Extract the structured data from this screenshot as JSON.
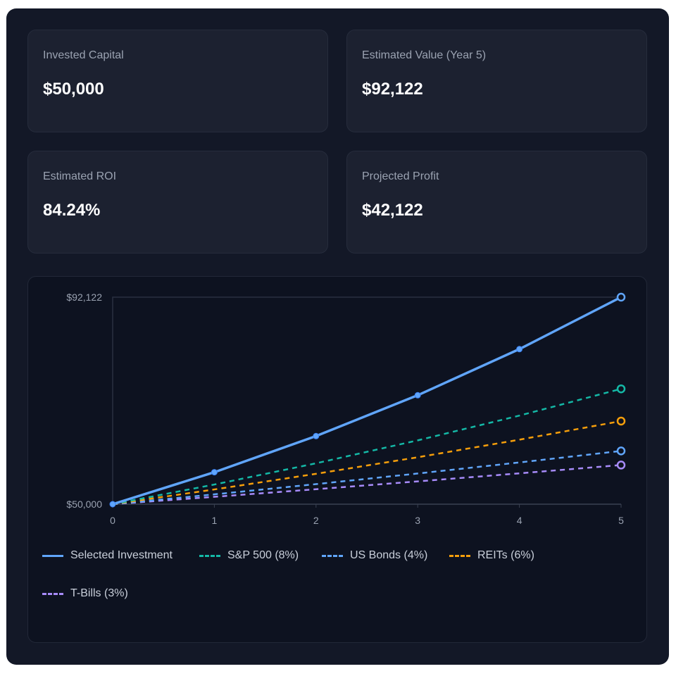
{
  "cards": [
    {
      "label": "Invested Capital",
      "value": "$50,000"
    },
    {
      "label": "Estimated Value (Year 5)",
      "value": "$92,122"
    },
    {
      "label": "Estimated ROI",
      "value": "84.24%"
    },
    {
      "label": "Projected Profit",
      "value": "$42,122"
    }
  ],
  "chart_data": {
    "type": "line",
    "x": [
      0,
      1,
      2,
      3,
      4,
      5
    ],
    "ylim": [
      50000,
      92122
    ],
    "y_tick_labels": [
      "$50,000",
      "$92,122"
    ],
    "x_tick_labels": [
      "0",
      "1",
      "2",
      "3",
      "4",
      "5"
    ],
    "grid": false,
    "legend_position": "bottom",
    "series": [
      {
        "name": "Selected Investment",
        "color": "#60a5fa",
        "dashed": false,
        "values": [
          50000,
          56505,
          63857,
          72164,
          81553,
          92122
        ]
      },
      {
        "name": "S&P 500 (8%)",
        "color": "#14b8a6",
        "dashed": true,
        "values": [
          50000,
          54000,
          58320,
          62986,
          68024,
          73466
        ]
      },
      {
        "name": "US Bonds (4%)",
        "color": "#60a5fa",
        "dashed": true,
        "values": [
          50000,
          52000,
          54080,
          56243,
          58493,
          60833
        ]
      },
      {
        "name": "REITs (6%)",
        "color": "#f59e0b",
        "dashed": true,
        "values": [
          50000,
          53000,
          56180,
          59551,
          63124,
          66911
        ]
      },
      {
        "name": "T-Bills (3%)",
        "color": "#a78bfa",
        "dashed": true,
        "values": [
          50000,
          51500,
          53045,
          54636,
          56275,
          57964
        ]
      }
    ]
  }
}
